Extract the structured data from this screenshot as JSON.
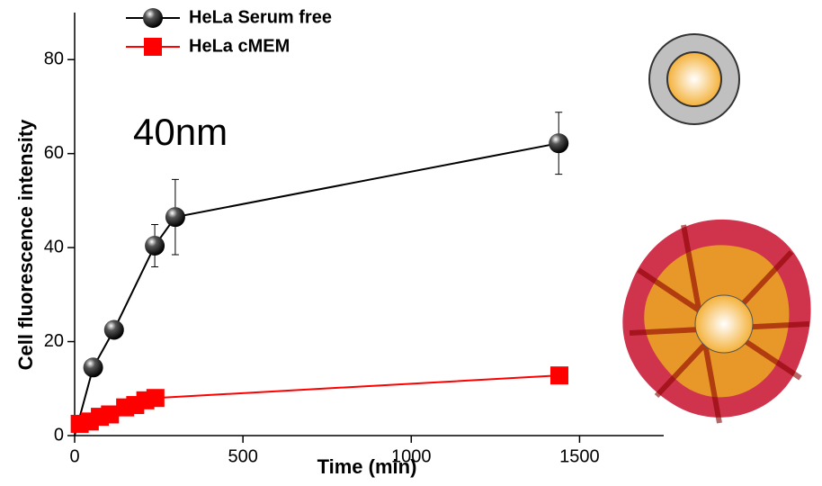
{
  "chart_data": {
    "type": "line",
    "annotation": "40nm",
    "x_label": "Time (min)",
    "y_label": "Cell fluorescence intensity",
    "xlim": [
      0,
      1750
    ],
    "xticks": [
      0,
      500,
      1000,
      1500
    ],
    "ylim": [
      0,
      90
    ],
    "yticks": [
      0,
      20,
      40,
      60,
      80
    ],
    "legend": "top-left",
    "series": [
      {
        "name": "HeLa Serum free",
        "color": "#000000",
        "marker": "sphere",
        "x": [
          0,
          55,
          117,
          238,
          299,
          1438
        ],
        "values": [
          0,
          14.5,
          22.5,
          40.4,
          46.5,
          62.2
        ],
        "errors": [
          null,
          null,
          null,
          4.5,
          8,
          6.6
        ]
      },
      {
        "name": "HeLa cMEM",
        "color": "#ff0000",
        "marker": "square",
        "x": [
          15,
          45,
          75,
          105,
          150,
          180,
          210,
          240,
          1440
        ],
        "values": [
          2.5,
          3,
          4,
          4.5,
          6,
          6.5,
          7.5,
          8,
          12.8
        ]
      }
    ]
  }
}
